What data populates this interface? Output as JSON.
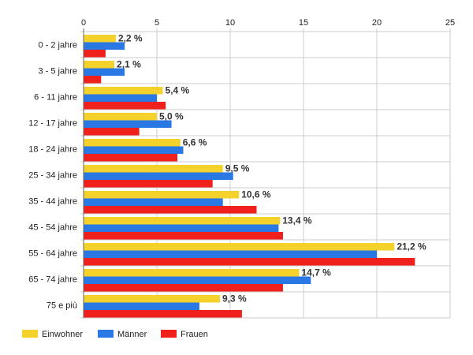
{
  "chart_data": {
    "type": "bar",
    "orientation": "horizontal",
    "categories": [
      "0 - 2 jahre",
      "3 - 5 jahre",
      "6 - 11 jahre",
      "12 - 17 jahre",
      "18 - 24 jahre",
      "25 - 34 jahre",
      "35 - 44 jahre",
      "45 - 54 jahre",
      "55 - 64 jahre",
      "65 - 74 jahre",
      "75 e più"
    ],
    "series": [
      {
        "name": "Einwohner",
        "color": "#f5d12b",
        "values": [
          2.2,
          2.1,
          5.4,
          5.0,
          6.6,
          9.5,
          10.6,
          13.4,
          21.2,
          14.7,
          9.3
        ]
      },
      {
        "name": "Männer",
        "color": "#2a78e4",
        "values": [
          2.8,
          2.8,
          5.0,
          6.0,
          6.8,
          10.2,
          9.5,
          13.3,
          20.0,
          15.5,
          7.9
        ]
      },
      {
        "name": "Frauen",
        "color": "#f0201d",
        "values": [
          1.5,
          1.2,
          5.6,
          3.8,
          6.4,
          8.8,
          11.8,
          13.6,
          22.6,
          13.6,
          10.8
        ]
      }
    ],
    "data_labels": [
      "2,2 %",
      "2,1 %",
      "5,4 %",
      "5,0 %",
      "6,6 %",
      "9,5 %",
      "10,6 %",
      "13,4 %",
      "21,2 %",
      "14,7 %",
      "9,3 %"
    ],
    "x_ticks": [
      "0",
      "5",
      "10",
      "15",
      "20",
      "25"
    ],
    "xlim": [
      0,
      25
    ],
    "grid": true,
    "legend_position": "bottom-left",
    "title": "",
    "xlabel": "",
    "ylabel": ""
  }
}
